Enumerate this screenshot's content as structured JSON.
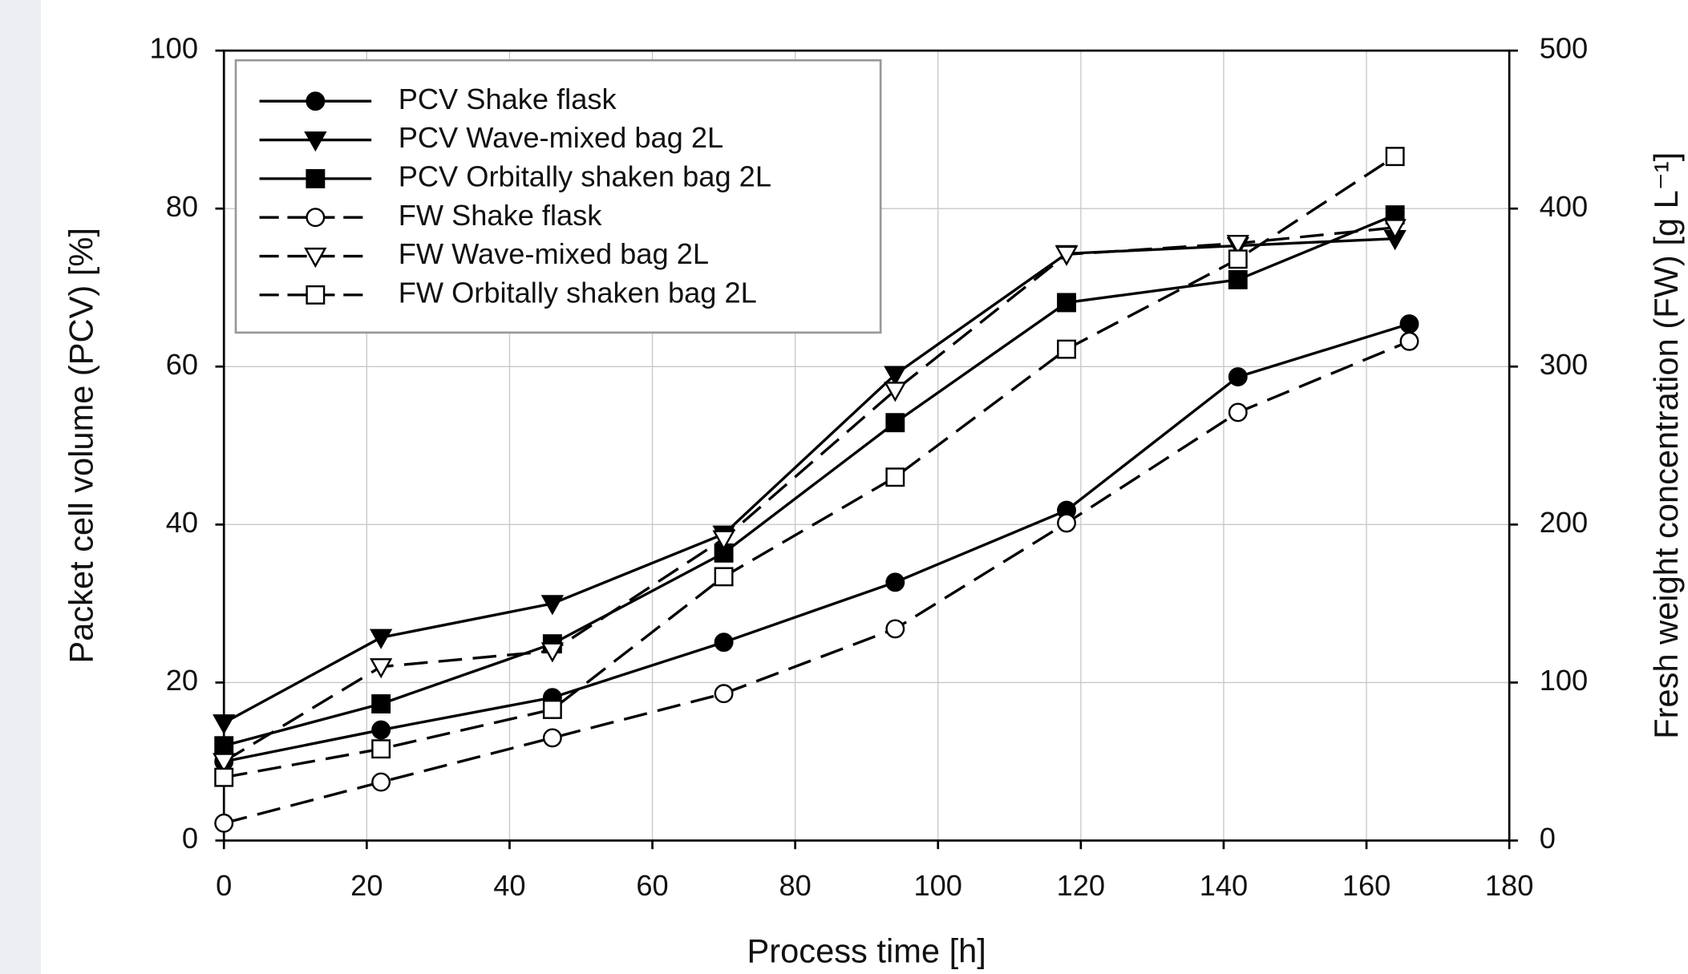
{
  "chart_data": {
    "type": "line",
    "xlabel": "Process time [h]",
    "ylabel": "Packet cell volume (PCV) [%]",
    "y2label": "Fresh weight concentration (FW) [g L⁻¹]",
    "xlim": [
      0,
      180
    ],
    "xticks": [
      0,
      20,
      40,
      60,
      80,
      100,
      120,
      140,
      160,
      180
    ],
    "ylim": [
      0,
      100
    ],
    "yticks": [
      0,
      20,
      40,
      60,
      80,
      100
    ],
    "y2lim": [
      0,
      500
    ],
    "y2ticks": [
      0,
      100,
      200,
      300,
      400,
      500
    ],
    "grid": true,
    "legend": "upper left",
    "series": [
      {
        "name": "PCV Shake flask",
        "color": "#000000",
        "marker": "circle",
        "filled": true,
        "dashed": false,
        "x": [
          0,
          22,
          46,
          70,
          94,
          118,
          142,
          166
        ],
        "values": [
          10,
          14,
          18.1,
          25.1,
          32.7,
          41.8,
          58.7,
          65.4
        ]
      },
      {
        "name": "PCV Wave-mixed bag 2L",
        "color": "#000000",
        "marker": "triangle-down",
        "filled": true,
        "dashed": false,
        "x": [
          0,
          22,
          46,
          70,
          94,
          118,
          142,
          164
        ],
        "values": [
          14.9,
          25.7,
          30,
          38.8,
          59,
          74.3,
          75.3,
          76.2
        ]
      },
      {
        "name": "PCV Orbitally shaken bag 2L",
        "color": "#000000",
        "marker": "square",
        "filled": true,
        "dashed": false,
        "x": [
          0,
          22,
          46,
          70,
          94,
          118,
          142,
          164
        ],
        "values": [
          12,
          17.3,
          24.9,
          36.4,
          52.9,
          68.1,
          71,
          79.2
        ]
      },
      {
        "name": "FW Shake flask",
        "color": "#000000",
        "marker": "circle",
        "filled": false,
        "dashed": true,
        "axis": "y2",
        "x": [
          0,
          22,
          46,
          70,
          94,
          118,
          142,
          166
        ],
        "values": [
          11,
          37,
          65,
          93,
          134,
          201,
          271,
          316
        ]
      },
      {
        "name": "FW Wave-mixed bag 2L",
        "color": "#000000",
        "marker": "triangle-down",
        "filled": false,
        "dashed": true,
        "axis": "y2",
        "x": [
          0,
          22,
          46,
          70,
          94,
          118,
          142,
          164
        ],
        "values": [
          50,
          110,
          120,
          191,
          285,
          371,
          378,
          388
        ]
      },
      {
        "name": "FW Orbitally shaken bag 2L",
        "color": "#000000",
        "marker": "square",
        "filled": false,
        "dashed": true,
        "axis": "y2",
        "x": [
          0,
          22,
          46,
          70,
          94,
          118,
          142,
          164
        ],
        "values": [
          40,
          58,
          83,
          167,
          230,
          311,
          368,
          433
        ]
      }
    ]
  }
}
